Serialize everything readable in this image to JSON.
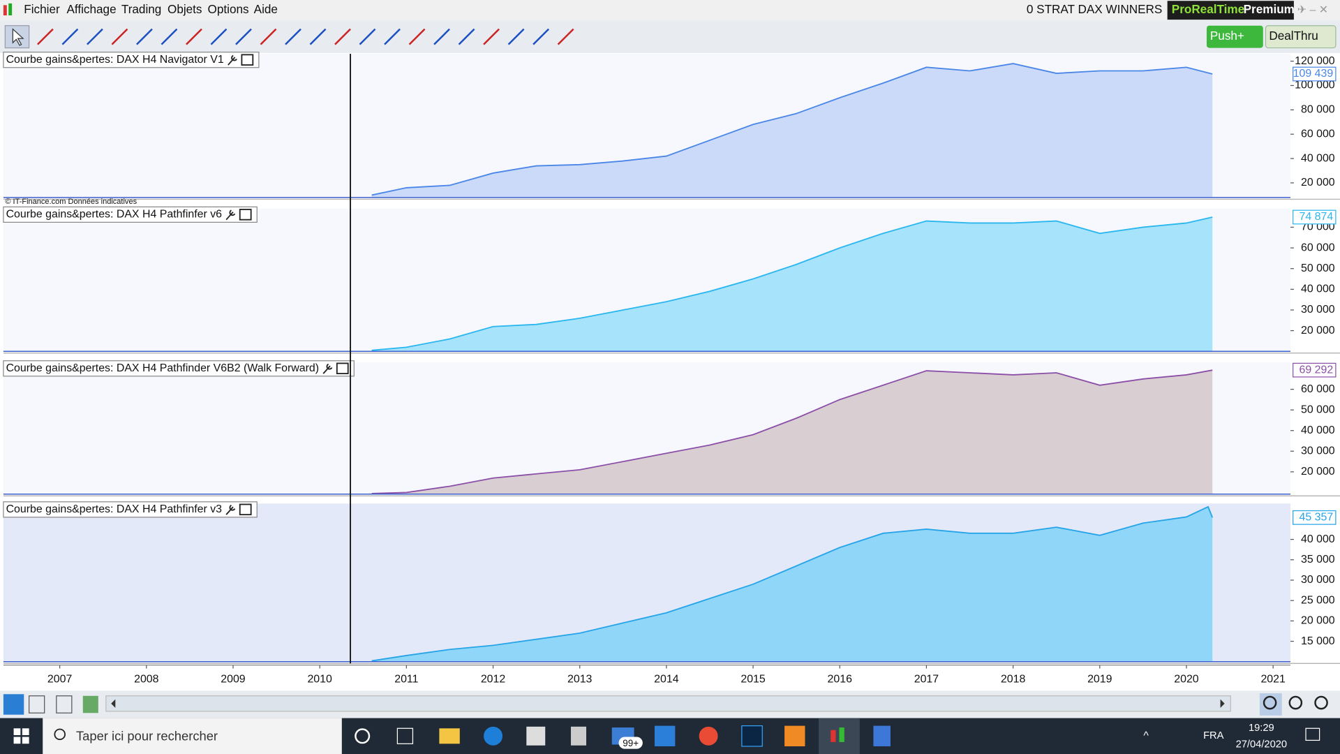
{
  "menu": [
    "Fichier",
    "Affichage",
    "Trading",
    "Objets",
    "Options",
    "Aide"
  ],
  "window_title": "0 STRAT DAX WINNERS",
  "brand": {
    "name": "ProRealTime",
    "edition": "Premium"
  },
  "buttons": {
    "push": "Push+",
    "dealthru": "DealThru"
  },
  "copyright": "© IT-Finance.com Données indicatives",
  "x_axis": {
    "xlim": [
      2006.35,
      2021.2
    ],
    "xticks": [
      2007,
      2008,
      2009,
      2010,
      2011,
      2012,
      2013,
      2014,
      2015,
      2016,
      2017,
      2018,
      2019,
      2020,
      2021
    ]
  },
  "chart_data": [
    {
      "type": "area",
      "title": "Courbe gains&pertes: DAX H4 Navigator  V1",
      "x": [
        2010.6,
        2011,
        2011.5,
        2012,
        2012.5,
        2013,
        2013.5,
        2014,
        2014.5,
        2015,
        2015.5,
        2016,
        2016.5,
        2017,
        2017.5,
        2018,
        2018.5,
        2019,
        2019.5,
        2020,
        2020.3
      ],
      "values": [
        10000,
        16000,
        18000,
        28000,
        34000,
        35000,
        38000,
        42000,
        55000,
        68000,
        77000,
        90000,
        102000,
        115000,
        112000,
        118000,
        110000,
        112000,
        112000,
        115000,
        109439
      ],
      "last_value_label": "109 439",
      "color": "#4a86e8",
      "fill": "#cbdaf8",
      "background": "#f6f8fe",
      "ylim": [
        8000,
        126000
      ],
      "yticks": [
        {
          "value": 20000,
          "label": "20 000"
        },
        {
          "value": 40000,
          "label": "40 000"
        },
        {
          "value": 60000,
          "label": "60 000"
        },
        {
          "value": 80000,
          "label": "80 000"
        },
        {
          "value": 100000,
          "label": "100 000"
        },
        {
          "value": 120000,
          "label": "120 000"
        }
      ]
    },
    {
      "type": "area",
      "title": "Courbe gains&pertes: DAX H4 Pathfinfer v6",
      "x": [
        2010.6,
        2011,
        2011.5,
        2012,
        2012.5,
        2013,
        2013.5,
        2014,
        2014.5,
        2015,
        2015.5,
        2016,
        2016.5,
        2017,
        2017.5,
        2018,
        2018.5,
        2019,
        2019.5,
        2020,
        2020.3
      ],
      "values": [
        10500,
        12000,
        16000,
        22000,
        23000,
        26000,
        30000,
        34000,
        39000,
        45000,
        52000,
        60000,
        67000,
        73000,
        72000,
        72000,
        73000,
        67000,
        70000,
        72000,
        74874
      ],
      "last_value_label": "74 874",
      "color": "#2ab6ee",
      "fill": "#a7e3fb",
      "background": "#f6f8fe",
      "ylim": [
        10000,
        79000
      ],
      "yticks": [
        {
          "value": 20000,
          "label": "20 000"
        },
        {
          "value": 30000,
          "label": "30 000"
        },
        {
          "value": 40000,
          "label": "40 000"
        },
        {
          "value": 50000,
          "label": "50 000"
        },
        {
          "value": 60000,
          "label": "60 000"
        },
        {
          "value": 70000,
          "label": "70 000"
        }
      ]
    },
    {
      "type": "area",
      "title": "Courbe gains&pertes: DAX H4 Pathfinder  V6B2 (Walk Forward)",
      "x": [
        2010.6,
        2011,
        2011.5,
        2012,
        2012.5,
        2013,
        2013.5,
        2014,
        2014.5,
        2015,
        2015.5,
        2016,
        2016.5,
        2017,
        2017.5,
        2018,
        2018.5,
        2019,
        2019.5,
        2020,
        2020.3
      ],
      "values": [
        9500,
        10000,
        13000,
        17000,
        19000,
        21000,
        25000,
        29000,
        33000,
        38000,
        46000,
        55000,
        62000,
        69000,
        68000,
        67000,
        68000,
        62000,
        65000,
        67000,
        69292
      ],
      "last_value_label": "69 292",
      "color": "#8c4fa8",
      "fill": "#d9cfd3",
      "background": "#f6f8fe",
      "ylim": [
        9200,
        73000
      ],
      "yticks": [
        {
          "value": 20000,
          "label": "20 000"
        },
        {
          "value": 30000,
          "label": "30 000"
        },
        {
          "value": 40000,
          "label": "40 000"
        },
        {
          "value": 50000,
          "label": "50 000"
        },
        {
          "value": 60000,
          "label": "60 000"
        }
      ]
    },
    {
      "type": "area",
      "title": "Courbe gains&pertes: DAX H4 Pathfinfer v3",
      "x": [
        2010.6,
        2011,
        2011.5,
        2012,
        2012.5,
        2013,
        2013.5,
        2014,
        2014.5,
        2015,
        2015.5,
        2016,
        2016.5,
        2017,
        2017.5,
        2018,
        2018.5,
        2019,
        2019.5,
        2020,
        2020.25,
        2020.3
      ],
      "values": [
        10200,
        11500,
        13000,
        14000,
        15500,
        17000,
        19500,
        22000,
        25500,
        29000,
        33500,
        38000,
        41500,
        42500,
        41500,
        41500,
        43000,
        41000,
        44000,
        45500,
        48000,
        45357
      ],
      "last_value_label": "45 357",
      "color": "#26a4e8",
      "fill": "#8fd6f9",
      "background": "#e4e9fa",
      "ylim": [
        10000,
        48800
      ],
      "yticks": [
        {
          "value": 15000,
          "label": "15 000"
        },
        {
          "value": 20000,
          "label": "20 000"
        },
        {
          "value": 25000,
          "label": "25 000"
        },
        {
          "value": 30000,
          "label": "30 000"
        },
        {
          "value": 35000,
          "label": "35 000"
        },
        {
          "value": 40000,
          "label": "40 000"
        }
      ]
    }
  ],
  "taskbar": {
    "search": "Taper ici pour rechercher",
    "badge": "99+",
    "language": "FRA",
    "time": "19:29",
    "date": "27/04/2020"
  }
}
